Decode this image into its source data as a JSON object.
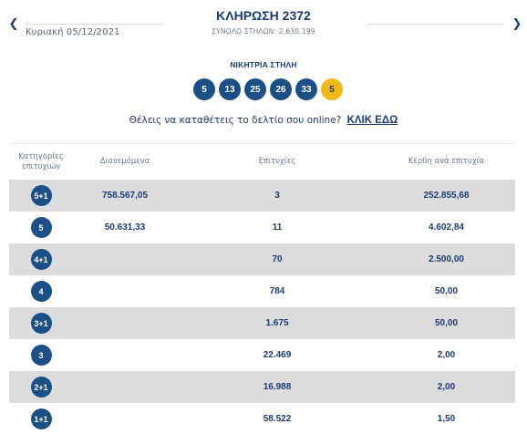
{
  "header": {
    "title": "ΚΛΗΡΩΣΗ 2372",
    "date": "Κυριακή 05/12/2021",
    "total_columns": "ΣΥΝΟΛΟ ΣΤΗΛΩΝ: 2.630.199",
    "prev_icon": "chevron-left-icon",
    "next_icon": "chevron-right-icon"
  },
  "winning": {
    "label": "ΝΙΚΗΤΡΙΑ ΣΤΗΛΗ",
    "numbers": [
      "5",
      "13",
      "25",
      "26",
      "33"
    ],
    "joker": "5",
    "ball_color": "#1c4f86",
    "joker_color": "#f2b81a"
  },
  "promo": {
    "text": "Θέλεις να καταθέτεις το δελτίο σου online?",
    "link": "ΚΛΙΚ ΕΔΩ"
  },
  "table": {
    "headers": {
      "category": "Κατηγορίες επιτυχιών",
      "distributed": "Διανεμόμενα",
      "winners": "Επιτυχίες",
      "prize": "Κέρδη ανά επιτυχία"
    },
    "rows": [
      {
        "category": "5+1",
        "distributed": "758.567,05",
        "winners": "3",
        "prize": "252.855,68"
      },
      {
        "category": "5",
        "distributed": "50.631,33",
        "winners": "11",
        "prize": "4.602,84"
      },
      {
        "category": "4+1",
        "distributed": "",
        "winners": "70",
        "prize": "2.500,00"
      },
      {
        "category": "4",
        "distributed": "",
        "winners": "784",
        "prize": "50,00"
      },
      {
        "category": "3+1",
        "distributed": "",
        "winners": "1.675",
        "prize": "50,00"
      },
      {
        "category": "3",
        "distributed": "",
        "winners": "22.469",
        "prize": "2,00"
      },
      {
        "category": "2+1",
        "distributed": "",
        "winners": "16.988",
        "prize": "2,00"
      },
      {
        "category": "1+1",
        "distributed": "",
        "winners": "58.522",
        "prize": "1,50"
      }
    ]
  }
}
